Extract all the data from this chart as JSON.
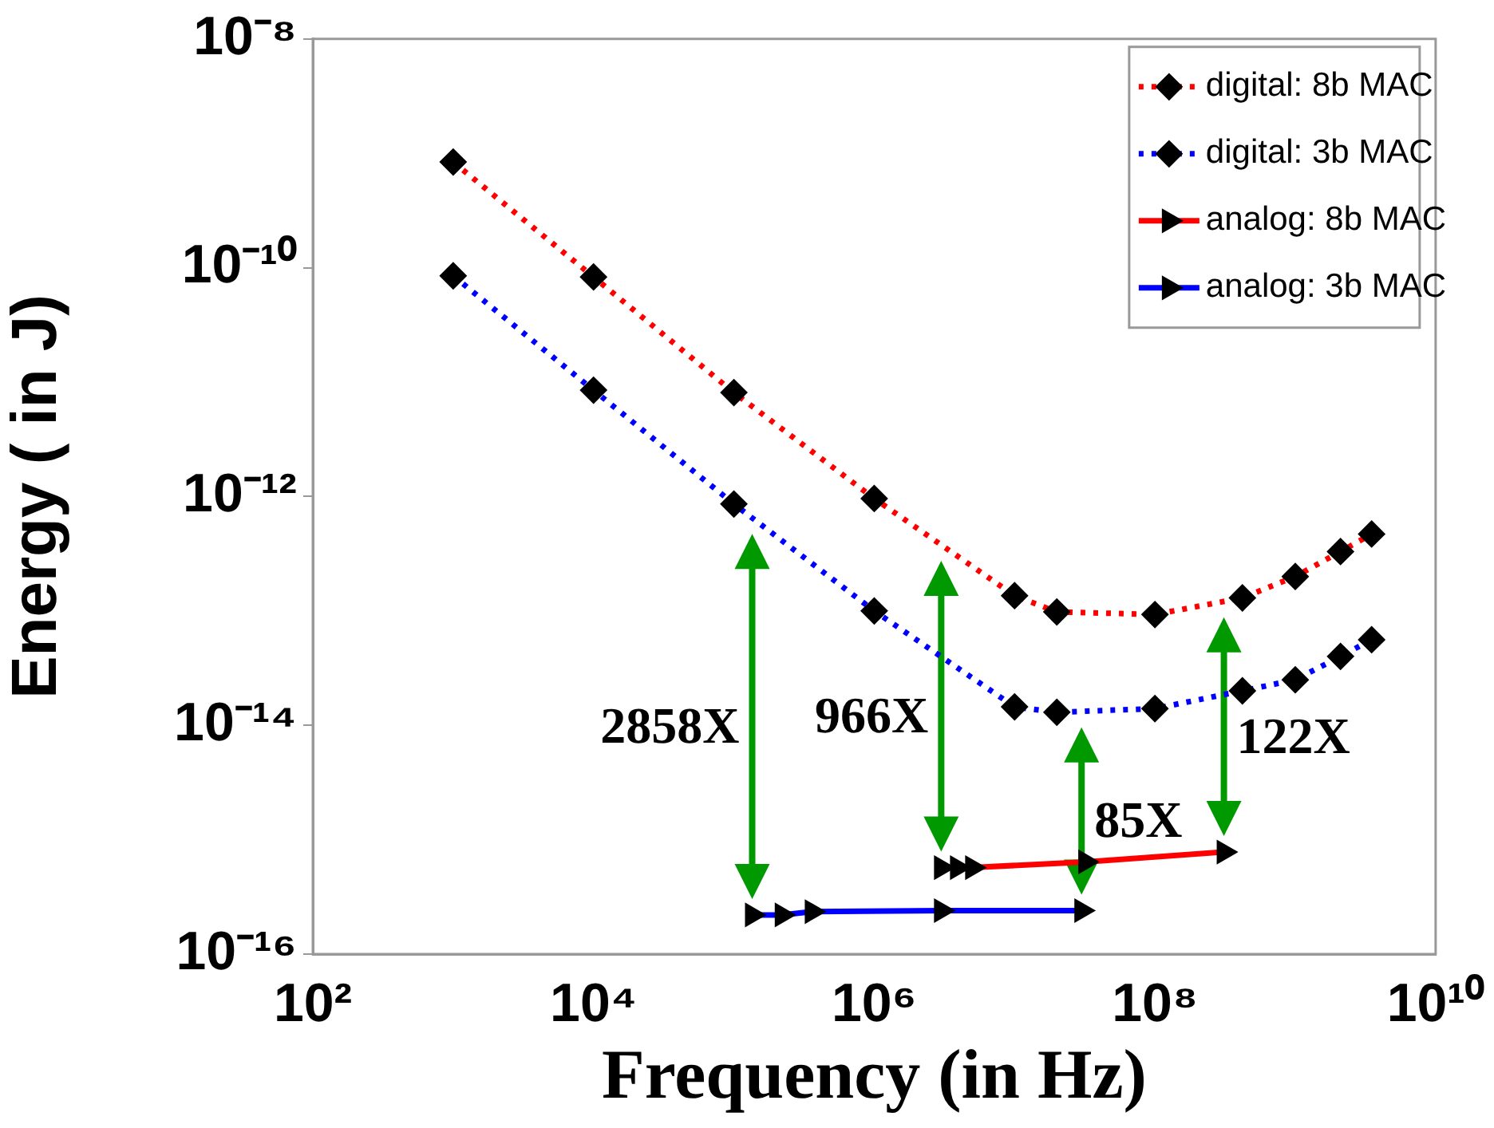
{
  "chart_data": {
    "type": "line",
    "xlabel": "Frequency (in Hz)",
    "ylabel": "Energy ( in J)",
    "log": "xy",
    "xlim": [
      100,
      10000000000
    ],
    "xticks": [
      {
        "value": 100,
        "label": "10²"
      },
      {
        "value": 10000,
        "label": "10⁴"
      },
      {
        "value": 1000000,
        "label": "10⁶"
      },
      {
        "value": 100000000,
        "label": "10⁸"
      },
      {
        "value": 10000000000,
        "label": "10¹⁰"
      }
    ],
    "ylim": [
      1e-16,
      1e-08
    ],
    "yticks": [
      {
        "value": 1e-16,
        "label": "10⁻¹⁶"
      },
      {
        "value": 1e-14,
        "label": "10⁻¹⁴"
      },
      {
        "value": 1e-12,
        "label": "10⁻¹²"
      },
      {
        "value": 1e-10,
        "label": "10⁻¹⁰"
      },
      {
        "value": 1e-08,
        "label": "10⁻⁸"
      }
    ],
    "grid": false,
    "legend": "top right",
    "series": [
      {
        "name": "digital: 8b MAC",
        "color": "#ff0000",
        "line_style": "dotted",
        "marker": "diamond",
        "x": [
          1000,
          10000,
          100000,
          1000000,
          10000000,
          20000000,
          100000000,
          420000000,
          1000000000,
          2100000000,
          3500000000
        ],
        "values": [
          8.4e-10,
          8.3e-11,
          8.1e-12,
          9.6e-13,
          1.36e-13,
          9.8e-14,
          9.3e-14,
          1.3e-13,
          2e-13,
          3.3e-13,
          4.7e-13
        ]
      },
      {
        "name": "digital: 3b MAC",
        "color": "#0000ff",
        "line_style": "dotted",
        "marker": "diamond",
        "x": [
          1000,
          10000,
          100000,
          1000000,
          10000000,
          20000000,
          100000000,
          420000000,
          1000000000,
          2100000000,
          3500000000
        ],
        "values": [
          8.5e-11,
          8.5e-12,
          8.6e-13,
          1e-13,
          1.45e-14,
          1.3e-14,
          1.4e-14,
          2e-14,
          2.5e-14,
          4e-14,
          5.6e-14
        ]
      },
      {
        "name": "analog: 8b MAC",
        "color": "#ff0000",
        "line_style": "solid",
        "marker": "triangle",
        "x": [
          3000000,
          3900000,
          5000000,
          32000000,
          310000000
        ],
        "values": [
          5.7e-16,
          5.7e-16,
          5.7e-16,
          6.4e-16,
          7.8e-16
        ]
      },
      {
        "name": "analog: 3b MAC",
        "color": "#0000ff",
        "line_style": "solid",
        "marker": "triangle",
        "x": [
          135000,
          220000,
          360000,
          3000000,
          30000000
        ],
        "values": [
          2.2e-16,
          2.2e-16,
          2.35e-16,
          2.4e-16,
          2.4e-16
        ]
      }
    ],
    "annotations": [
      "2858X",
      "966X",
      "85X",
      "122X"
    ]
  }
}
